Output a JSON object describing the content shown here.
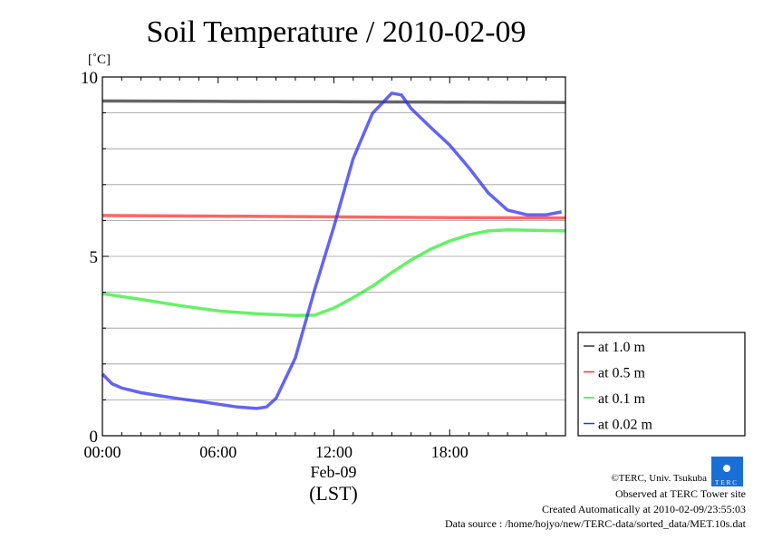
{
  "chart_data": {
    "type": "line",
    "title": "Soil Temperature / 2010-02-09",
    "ylabel": "[˚C]",
    "xlabel_date": "Feb-09",
    "xlabel": "(LST)",
    "xlim": [
      0,
      24
    ],
    "ylim": [
      0,
      10
    ],
    "grid": true,
    "x_ticks": [
      {
        "v": 0,
        "label": "00:00"
      },
      {
        "v": 6,
        "label": "06:00"
      },
      {
        "v": 12,
        "label": "12:00"
      },
      {
        "v": 18,
        "label": "18:00"
      }
    ],
    "y_ticks": [
      {
        "v": 0,
        "label": "0"
      },
      {
        "v": 5,
        "label": "5"
      },
      {
        "v": 10,
        "label": "10"
      }
    ],
    "legend_position": "right",
    "series": [
      {
        "name": "at 1.0 m",
        "color": "#333333",
        "x": [
          0,
          6,
          12,
          18,
          24
        ],
        "y": [
          9.33,
          9.32,
          9.31,
          9.3,
          9.29
        ]
      },
      {
        "name": "at 0.5 m",
        "color": "#ff3030",
        "x": [
          0,
          6,
          12,
          18,
          24
        ],
        "y": [
          6.14,
          6.12,
          6.1,
          6.08,
          6.07
        ]
      },
      {
        "name": "at 0.1 m",
        "color": "#30ee30",
        "x": [
          0,
          2,
          4,
          6,
          8,
          10,
          11,
          12,
          13,
          14,
          15,
          16,
          17,
          18,
          19,
          20,
          21,
          22,
          24
        ],
        "y": [
          3.96,
          3.8,
          3.63,
          3.48,
          3.4,
          3.35,
          3.36,
          3.56,
          3.85,
          4.17,
          4.55,
          4.9,
          5.2,
          5.43,
          5.6,
          5.71,
          5.74,
          5.73,
          5.71
        ]
      },
      {
        "name": "at 0.02 m",
        "color": "#3030ee",
        "x": [
          0,
          0.5,
          1,
          2,
          3,
          4,
          5,
          6,
          7,
          8,
          8.5,
          9,
          10,
          11,
          12,
          13,
          14,
          15,
          15.5,
          16,
          17,
          18,
          19,
          20,
          21,
          22,
          23,
          23.8
        ],
        "y": [
          1.72,
          1.45,
          1.33,
          1.2,
          1.11,
          1.03,
          0.96,
          0.88,
          0.8,
          0.76,
          0.8,
          1.04,
          2.17,
          4.07,
          5.83,
          7.73,
          8.99,
          9.55,
          9.5,
          9.12,
          8.6,
          8.1,
          7.47,
          6.77,
          6.29,
          6.16,
          6.16,
          6.24
        ]
      }
    ]
  },
  "footer": {
    "copyright": "©TERC, Univ. Tsukuba",
    "logo_text": "TERC",
    "observed": "Observed at TERC Tower site",
    "created": "Created Automatically at 2010-02-09/23:55:03",
    "source": "Data source : /home/hojyo/new/TERC-data/sorted_data/MET.10s.dat"
  }
}
